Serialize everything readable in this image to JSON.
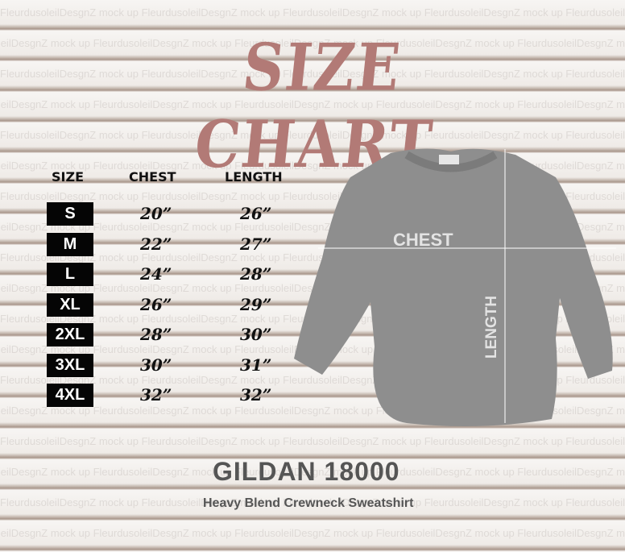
{
  "title": "SIZE CHART",
  "watermark": "FleurdusoleilDesgnZ mock up",
  "table": {
    "headers": [
      "SIZE",
      "CHEST",
      "LENGTH"
    ],
    "rows": [
      {
        "size": "S",
        "chest": "20”",
        "length": "26”"
      },
      {
        "size": "M",
        "chest": "22”",
        "length": "27”"
      },
      {
        "size": "L",
        "chest": "24”",
        "length": "28”"
      },
      {
        "size": "XL",
        "chest": "26”",
        "length": "29”"
      },
      {
        "size": "2XL",
        "chest": "28”",
        "length": "30”"
      },
      {
        "size": "3XL",
        "chest": "30”",
        "length": "31”"
      },
      {
        "size": "4XL",
        "chest": "32”",
        "length": "32”"
      }
    ]
  },
  "garment": {
    "chest_label": "CHEST",
    "length_label": "LENGTH",
    "color": "#8e8e8e"
  },
  "product": {
    "name": "GILDAN 18000",
    "description": "Heavy Blend Crewneck Sweatshirt"
  },
  "colors": {
    "title": "#b27a76",
    "size_badge": "#050505"
  }
}
